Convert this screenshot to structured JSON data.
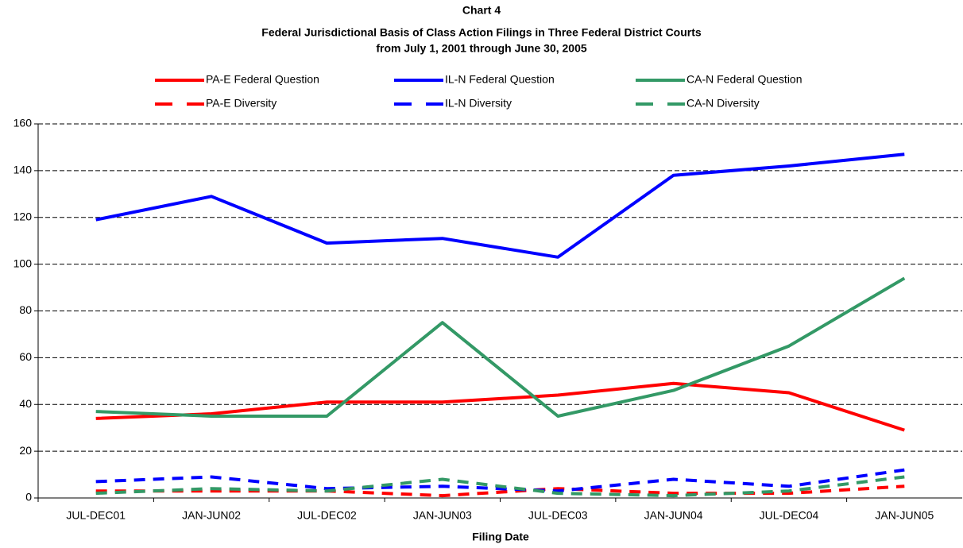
{
  "chart_data": {
    "type": "line",
    "title": [
      "Chart 4",
      "Federal Jurisdictional Basis of Class Action Filings in Three Federal District Courts",
      "from July 1, 2001 through June 30, 2005"
    ],
    "x_label": "Filing Date",
    "categories": [
      "JUL-DEC01",
      "JAN-JUN02",
      "JUL-DEC02",
      "JAN-JUN03",
      "JUL-DEC03",
      "JAN-JUN04",
      "JUL-DEC04",
      "JAN-JUN05"
    ],
    "ylim": [
      0,
      160
    ],
    "yticks": [
      0,
      20,
      40,
      60,
      80,
      100,
      120,
      140,
      160
    ],
    "grid": true,
    "series": [
      {
        "name": "PA-E Federal Question",
        "color": "#ff0000",
        "dashed": false,
        "values": [
          34,
          36,
          41,
          41,
          44,
          49,
          45,
          29
        ]
      },
      {
        "name": "IL-N Federal Question",
        "color": "#0000ff",
        "dashed": false,
        "values": [
          119,
          129,
          109,
          111,
          103,
          138,
          142,
          147
        ]
      },
      {
        "name": "CA-N Federal Question",
        "color": "#339966",
        "dashed": false,
        "values": [
          37,
          35,
          35,
          75,
          35,
          46,
          65,
          94
        ]
      },
      {
        "name": "PA-E Diversity",
        "color": "#ff0000",
        "dashed": true,
        "values": [
          3,
          3,
          3,
          1,
          4,
          2,
          2,
          5
        ]
      },
      {
        "name": "IL-N Diversity",
        "color": "#0000ff",
        "dashed": true,
        "values": [
          7,
          9,
          4,
          5,
          3,
          8,
          5,
          12
        ]
      },
      {
        "name": "CA-N Diversity",
        "color": "#339966",
        "dashed": true,
        "values": [
          2,
          4,
          3,
          8,
          2,
          1,
          3,
          9
        ]
      }
    ]
  }
}
